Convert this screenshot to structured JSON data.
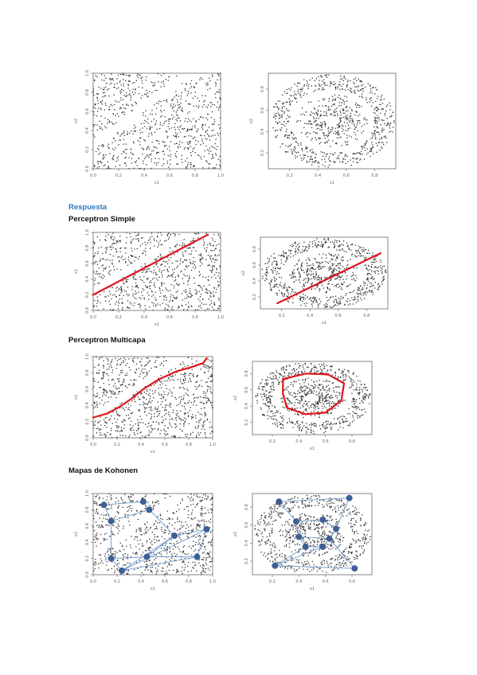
{
  "headings": {
    "answer": "Respuesta",
    "simple": "Perceptron Simple",
    "multi": "Perceptron Multicapa",
    "kohonen": "Mapas de Kohonen"
  },
  "colors": {
    "answer_heading": "#2b79c2",
    "decision_line": "#e0161b",
    "kohonen_node": "#3e5f95",
    "kohonen_edge": "#7aa3cf",
    "points": "#333333"
  },
  "axes": {
    "xlabel": "x1",
    "ylabel": "x2",
    "ticks_unit": [
      "0.0",
      "0.2",
      "0.4",
      "0.6",
      "0.8",
      "1.0"
    ],
    "ticks_ring": [
      "0.2",
      "0.4",
      "0.6",
      "0.8"
    ]
  },
  "chart_data": [
    {
      "id": "problem-diagonal",
      "type": "scatter",
      "pattern": "diagonal split",
      "xlim": [
        0,
        1
      ],
      "ylim": [
        0,
        1
      ],
      "xlabel": "x1",
      "ylabel": "x2",
      "grid": false
    },
    {
      "id": "problem-rings",
      "type": "scatter",
      "pattern": "concentric rings",
      "xlim": [
        0.05,
        0.95
      ],
      "ylim": [
        0.05,
        0.95
      ],
      "xlabel": "x1",
      "ylabel": "x2",
      "grid": false
    },
    {
      "id": "simple-diagonal",
      "type": "scatter",
      "pattern": "diagonal split",
      "xlim": [
        0,
        1
      ],
      "ylim": [
        0,
        1
      ],
      "xlabel": "x1",
      "ylabel": "x2",
      "grid": false,
      "overlay": {
        "kind": "line",
        "points": [
          [
            0.0,
            0.2
          ],
          [
            0.9,
            0.97
          ]
        ]
      }
    },
    {
      "id": "simple-rings",
      "type": "scatter",
      "pattern": "concentric rings",
      "xlim": [
        0.05,
        0.95
      ],
      "ylim": [
        0.05,
        0.95
      ],
      "xlabel": "x1",
      "ylabel": "x2",
      "grid": false,
      "overlay": {
        "kind": "line",
        "points": [
          [
            0.17,
            0.12
          ],
          [
            0.9,
            0.75
          ]
        ]
      }
    },
    {
      "id": "multi-diagonal",
      "type": "scatter",
      "pattern": "diagonal split",
      "xlim": [
        0,
        1
      ],
      "ylim": [
        0,
        1
      ],
      "xlabel": "x1",
      "ylabel": "x2",
      "grid": false,
      "overlay": {
        "kind": "curve",
        "points": [
          [
            0.0,
            0.25
          ],
          [
            0.12,
            0.3
          ],
          [
            0.22,
            0.38
          ],
          [
            0.32,
            0.48
          ],
          [
            0.42,
            0.6
          ],
          [
            0.55,
            0.72
          ],
          [
            0.7,
            0.82
          ],
          [
            0.82,
            0.87
          ],
          [
            0.92,
            0.92
          ],
          [
            0.95,
            0.98
          ]
        ]
      }
    },
    {
      "id": "multi-rings",
      "type": "scatter",
      "pattern": "concentric rings",
      "xlim": [
        0.05,
        0.95
      ],
      "ylim": [
        0.05,
        0.95
      ],
      "xlabel": "x1",
      "ylabel": "x2",
      "grid": false,
      "overlay": {
        "kind": "closed-curve",
        "points": [
          [
            0.3,
            0.74
          ],
          [
            0.45,
            0.8
          ],
          [
            0.62,
            0.79
          ],
          [
            0.74,
            0.68
          ],
          [
            0.72,
            0.47
          ],
          [
            0.6,
            0.32
          ],
          [
            0.45,
            0.3
          ],
          [
            0.31,
            0.38
          ],
          [
            0.28,
            0.55
          ],
          [
            0.28,
            0.72
          ]
        ]
      }
    },
    {
      "id": "kohonen-diagonal",
      "type": "scatter",
      "pattern": "diagonal split",
      "xlim": [
        0,
        1
      ],
      "ylim": [
        0,
        1
      ],
      "xlabel": "x1",
      "ylabel": "x2",
      "grid": false,
      "overlay": {
        "kind": "kohonen",
        "nodes": [
          [
            0.09,
            0.86
          ],
          [
            0.42,
            0.9
          ],
          [
            0.47,
            0.8
          ],
          [
            0.15,
            0.66
          ],
          [
            0.68,
            0.48
          ],
          [
            0.95,
            0.56
          ],
          [
            0.15,
            0.2
          ],
          [
            0.45,
            0.22
          ],
          [
            0.87,
            0.22
          ],
          [
            0.24,
            0.05
          ]
        ],
        "edges": [
          [
            0,
            1
          ],
          [
            1,
            2
          ],
          [
            2,
            3
          ],
          [
            3,
            0
          ],
          [
            3,
            6
          ],
          [
            6,
            7
          ],
          [
            7,
            4
          ],
          [
            4,
            5
          ],
          [
            5,
            8
          ],
          [
            8,
            9
          ],
          [
            9,
            4
          ],
          [
            2,
            4
          ],
          [
            6,
            9
          ],
          [
            7,
            8
          ],
          [
            5,
            9
          ]
        ]
      }
    },
    {
      "id": "kohonen-rings",
      "type": "scatter",
      "pattern": "concentric rings",
      "xlim": [
        0.05,
        0.95
      ],
      "ylim": [
        0.05,
        0.95
      ],
      "xlabel": "x1",
      "ylabel": "x2",
      "grid": false,
      "overlay": {
        "kind": "kohonen",
        "nodes": [
          [
            0.25,
            0.86
          ],
          [
            0.78,
            0.9
          ],
          [
            0.38,
            0.64
          ],
          [
            0.58,
            0.66
          ],
          [
            0.68,
            0.56
          ],
          [
            0.4,
            0.47
          ],
          [
            0.63,
            0.45
          ],
          [
            0.45,
            0.36
          ],
          [
            0.58,
            0.36
          ],
          [
            0.22,
            0.15
          ],
          [
            0.82,
            0.12
          ]
        ],
        "edges": [
          [
            0,
            1
          ],
          [
            1,
            4
          ],
          [
            0,
            2
          ],
          [
            2,
            3
          ],
          [
            3,
            4
          ],
          [
            2,
            5
          ],
          [
            4,
            6
          ],
          [
            5,
            6
          ],
          [
            5,
            7
          ],
          [
            6,
            8
          ],
          [
            7,
            8
          ],
          [
            7,
            9
          ],
          [
            8,
            9
          ],
          [
            9,
            10
          ],
          [
            10,
            6
          ]
        ]
      }
    }
  ]
}
